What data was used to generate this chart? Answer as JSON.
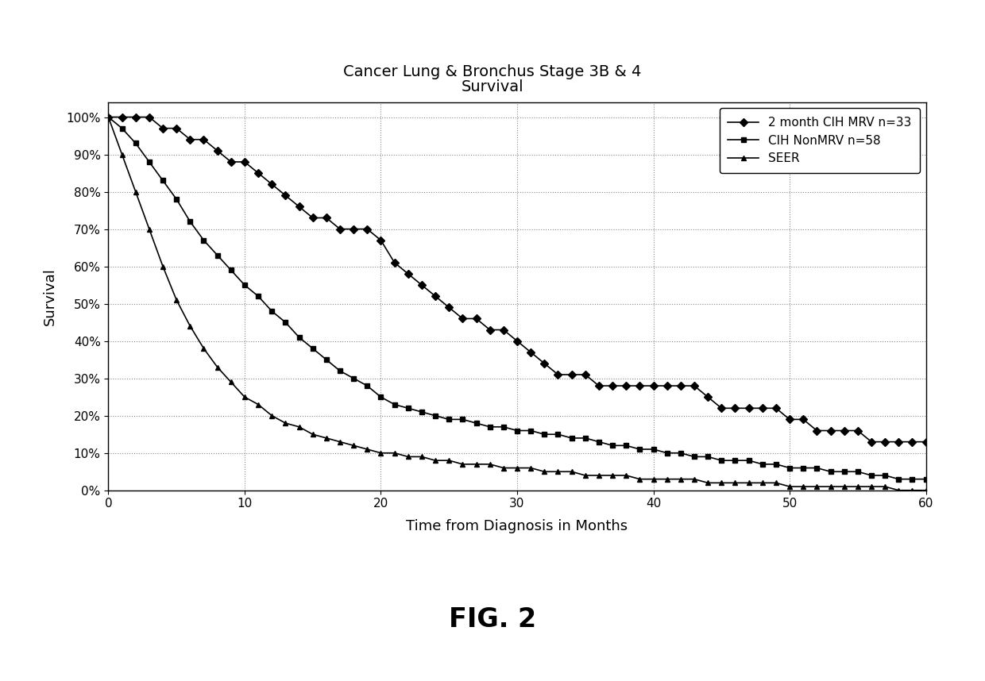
{
  "title_line1": "Cancer Lung & Bronchus Stage 3B & 4",
  "title_line2": "Survival",
  "xlabel": "Time from Diagnosis in Months",
  "ylabel": "Survival",
  "fig_label": "FIG. 2",
  "xlim": [
    0,
    60
  ],
  "ylim": [
    0,
    1.04
  ],
  "yticks": [
    0,
    0.1,
    0.2,
    0.3,
    0.4,
    0.5,
    0.6,
    0.7,
    0.8,
    0.9,
    1.0
  ],
  "ytick_labels": [
    "0%",
    "10%",
    "20%",
    "30%",
    "40%",
    "50%",
    "60%",
    "70%",
    "80%",
    "90%",
    "100%"
  ],
  "xticks": [
    0,
    10,
    20,
    30,
    40,
    50,
    60
  ],
  "series": [
    {
      "label": "2 month CIH MRV n=33",
      "marker": "D",
      "color": "#000000",
      "x": [
        0,
        1,
        2,
        3,
        4,
        5,
        6,
        7,
        8,
        9,
        10,
        11,
        12,
        13,
        14,
        15,
        16,
        17,
        18,
        19,
        20,
        21,
        22,
        23,
        24,
        25,
        26,
        27,
        28,
        29,
        30,
        31,
        32,
        33,
        34,
        35,
        36,
        37,
        38,
        39,
        40,
        41,
        42,
        43,
        44,
        45,
        46,
        47,
        48,
        49,
        50,
        51,
        52,
        53,
        54,
        55,
        56,
        57,
        58,
        59,
        60
      ],
      "y": [
        1.0,
        1.0,
        1.0,
        1.0,
        0.97,
        0.97,
        0.94,
        0.94,
        0.91,
        0.88,
        0.88,
        0.85,
        0.82,
        0.79,
        0.76,
        0.73,
        0.73,
        0.7,
        0.7,
        0.7,
        0.67,
        0.61,
        0.58,
        0.55,
        0.52,
        0.49,
        0.46,
        0.46,
        0.43,
        0.43,
        0.4,
        0.37,
        0.34,
        0.31,
        0.31,
        0.31,
        0.28,
        0.28,
        0.28,
        0.28,
        0.28,
        0.28,
        0.28,
        0.28,
        0.25,
        0.22,
        0.22,
        0.22,
        0.22,
        0.22,
        0.19,
        0.19,
        0.16,
        0.16,
        0.16,
        0.16,
        0.13,
        0.13,
        0.13,
        0.13,
        0.13
      ]
    },
    {
      "label": "CIH NonMRV n=58",
      "marker": "s",
      "color": "#000000",
      "x": [
        0,
        1,
        2,
        3,
        4,
        5,
        6,
        7,
        8,
        9,
        10,
        11,
        12,
        13,
        14,
        15,
        16,
        17,
        18,
        19,
        20,
        21,
        22,
        23,
        24,
        25,
        26,
        27,
        28,
        29,
        30,
        31,
        32,
        33,
        34,
        35,
        36,
        37,
        38,
        39,
        40,
        41,
        42,
        43,
        44,
        45,
        46,
        47,
        48,
        49,
        50,
        51,
        52,
        53,
        54,
        55,
        56,
        57,
        58,
        59,
        60
      ],
      "y": [
        1.0,
        0.97,
        0.93,
        0.88,
        0.83,
        0.78,
        0.72,
        0.67,
        0.63,
        0.59,
        0.55,
        0.52,
        0.48,
        0.45,
        0.41,
        0.38,
        0.35,
        0.32,
        0.3,
        0.28,
        0.25,
        0.23,
        0.22,
        0.21,
        0.2,
        0.19,
        0.19,
        0.18,
        0.17,
        0.17,
        0.16,
        0.16,
        0.15,
        0.15,
        0.14,
        0.14,
        0.13,
        0.12,
        0.12,
        0.11,
        0.11,
        0.1,
        0.1,
        0.09,
        0.09,
        0.08,
        0.08,
        0.08,
        0.07,
        0.07,
        0.06,
        0.06,
        0.06,
        0.05,
        0.05,
        0.05,
        0.04,
        0.04,
        0.03,
        0.03,
        0.03
      ]
    },
    {
      "label": "SEER",
      "marker": "^",
      "color": "#000000",
      "x": [
        0,
        1,
        2,
        3,
        4,
        5,
        6,
        7,
        8,
        9,
        10,
        11,
        12,
        13,
        14,
        15,
        16,
        17,
        18,
        19,
        20,
        21,
        22,
        23,
        24,
        25,
        26,
        27,
        28,
        29,
        30,
        31,
        32,
        33,
        34,
        35,
        36,
        37,
        38,
        39,
        40,
        41,
        42,
        43,
        44,
        45,
        46,
        47,
        48,
        49,
        50,
        51,
        52,
        53,
        54,
        55,
        56,
        57,
        58,
        59,
        60
      ],
      "y": [
        1.0,
        0.9,
        0.8,
        0.7,
        0.6,
        0.51,
        0.44,
        0.38,
        0.33,
        0.29,
        0.25,
        0.23,
        0.2,
        0.18,
        0.17,
        0.15,
        0.14,
        0.13,
        0.12,
        0.11,
        0.1,
        0.1,
        0.09,
        0.09,
        0.08,
        0.08,
        0.07,
        0.07,
        0.07,
        0.06,
        0.06,
        0.06,
        0.05,
        0.05,
        0.05,
        0.04,
        0.04,
        0.04,
        0.04,
        0.03,
        0.03,
        0.03,
        0.03,
        0.03,
        0.02,
        0.02,
        0.02,
        0.02,
        0.02,
        0.02,
        0.01,
        0.01,
        0.01,
        0.01,
        0.01,
        0.01,
        0.01,
        0.01,
        0.0,
        0.0,
        0.0
      ]
    }
  ],
  "background_color": "#ffffff",
  "grid_color": "#888888",
  "title_fontsize": 14,
  "axis_label_fontsize": 13,
  "tick_fontsize": 11,
  "legend_fontsize": 11,
  "fig_label_fontsize": 24,
  "marker_size": 5,
  "linewidth": 1.2,
  "marker_every": 1
}
